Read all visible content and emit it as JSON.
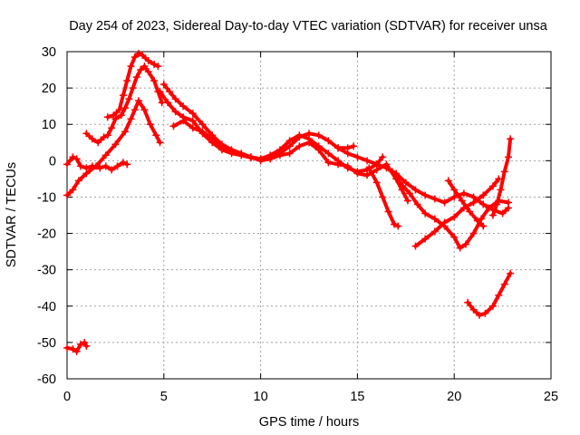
{
  "chart_data": {
    "type": "scatter",
    "title": "Day 254 of 2023, Sidereal Day-to-day VTEC variation (SDTVAR) for receiver unsa",
    "xlabel": "GPS time / hours",
    "ylabel": "SDTVAR / TECUs",
    "xlim": [
      0,
      25
    ],
    "ylim": [
      -60,
      30
    ],
    "xticks": [
      0,
      5,
      10,
      15,
      20,
      25
    ],
    "yticks": [
      -60,
      -50,
      -40,
      -30,
      -20,
      -10,
      0,
      10,
      20,
      30
    ],
    "grid": true,
    "marker": "+",
    "color": "#ff0000",
    "series": [
      {
        "name": "track-1",
        "points": [
          [
            0.0,
            -51.5
          ],
          [
            0.3,
            -51.8
          ],
          [
            0.5,
            -52.5
          ],
          [
            0.7,
            -50.5
          ],
          [
            0.9,
            -50.0
          ],
          [
            1.0,
            -51.0
          ]
        ]
      },
      {
        "name": "track-2",
        "points": [
          [
            0.0,
            -9.5
          ],
          [
            0.3,
            -8.0
          ],
          [
            0.6,
            -5.5
          ],
          [
            1.0,
            -3.5
          ],
          [
            1.5,
            -1.5
          ],
          [
            2.0,
            1.5
          ],
          [
            2.5,
            4.5
          ],
          [
            3.0,
            8.0
          ],
          [
            3.3,
            11.5
          ],
          [
            3.5,
            14.0
          ],
          [
            3.7,
            16.5
          ],
          [
            4.0,
            14.0
          ],
          [
            4.3,
            10.0
          ],
          [
            4.6,
            7.0
          ],
          [
            4.8,
            5.0
          ]
        ]
      },
      {
        "name": "track-3",
        "points": [
          [
            0.0,
            -1.0
          ],
          [
            0.3,
            1.0
          ],
          [
            0.5,
            0.5
          ],
          [
            0.7,
            -1.5
          ],
          [
            1.0,
            -2.0
          ],
          [
            1.3,
            -1.5
          ],
          [
            1.7,
            -2.0
          ],
          [
            2.0,
            -1.5
          ],
          [
            2.3,
            -2.5
          ],
          [
            2.6,
            -1.5
          ],
          [
            2.9,
            -0.5
          ],
          [
            3.1,
            -1.0
          ]
        ]
      },
      {
        "name": "track-4",
        "points": [
          [
            1.0,
            7.5
          ],
          [
            1.3,
            6.0
          ],
          [
            1.6,
            5.0
          ],
          [
            1.9,
            6.5
          ],
          [
            2.1,
            7.0
          ],
          [
            2.3,
            9.0
          ],
          [
            2.5,
            11.5
          ],
          [
            2.8,
            12.5
          ],
          [
            3.0,
            14.5
          ],
          [
            3.2,
            17.0
          ],
          [
            3.4,
            20.0
          ],
          [
            3.6,
            23.0
          ],
          [
            3.8,
            25.0
          ],
          [
            4.0,
            26.0
          ],
          [
            4.2,
            24.5
          ],
          [
            4.5,
            22.0
          ],
          [
            4.7,
            19.0
          ],
          [
            4.9,
            16.0
          ]
        ]
      },
      {
        "name": "track-5",
        "points": [
          [
            2.1,
            12.0
          ],
          [
            2.4,
            12.5
          ],
          [
            2.7,
            14.0
          ],
          [
            2.9,
            18.0
          ],
          [
            3.1,
            22.0
          ],
          [
            3.3,
            26.0
          ],
          [
            3.5,
            28.5
          ],
          [
            3.7,
            29.5
          ],
          [
            3.9,
            29.0
          ],
          [
            4.2,
            27.5
          ],
          [
            4.5,
            26.5
          ],
          [
            4.7,
            26.0
          ]
        ]
      },
      {
        "name": "track-6",
        "points": [
          [
            5.0,
            21.0
          ],
          [
            5.3,
            19.0
          ],
          [
            5.6,
            17.0
          ],
          [
            6.0,
            15.0
          ],
          [
            6.5,
            13.0
          ],
          [
            7.0,
            10.0
          ],
          [
            7.5,
            7.0
          ],
          [
            8.0,
            4.5
          ],
          [
            8.5,
            3.0
          ],
          [
            9.0,
            2.0
          ],
          [
            9.5,
            1.0
          ],
          [
            10.0,
            0.5
          ],
          [
            10.5,
            1.0
          ],
          [
            11.0,
            2.0
          ],
          [
            11.5,
            4.0
          ],
          [
            12.0,
            6.5
          ],
          [
            12.5,
            7.5
          ],
          [
            13.0,
            7.0
          ],
          [
            13.5,
            5.5
          ],
          [
            14.0,
            3.5
          ],
          [
            14.5,
            2.0
          ],
          [
            15.0,
            1.0
          ],
          [
            15.5,
            0.0
          ],
          [
            16.0,
            -1.0
          ],
          [
            16.5,
            -2.0
          ],
          [
            17.0,
            -3.5
          ],
          [
            17.5,
            -6.0
          ],
          [
            18.0,
            -8.0
          ],
          [
            18.5,
            -9.5
          ],
          [
            19.0,
            -10.5
          ],
          [
            19.5,
            -11.5
          ],
          [
            20.0,
            -10.0
          ],
          [
            20.5,
            -9.0
          ],
          [
            21.0,
            -10.0
          ],
          [
            21.5,
            -12.0
          ],
          [
            22.0,
            -13.5
          ],
          [
            22.5,
            -14.5
          ],
          [
            22.8,
            -13.0
          ]
        ]
      },
      {
        "name": "track-7",
        "points": [
          [
            4.8,
            19.0
          ],
          [
            5.2,
            16.0
          ],
          [
            5.6,
            13.5
          ],
          [
            6.0,
            12.0
          ],
          [
            6.5,
            11.0
          ],
          [
            7.0,
            7.5
          ],
          [
            7.5,
            5.0
          ],
          [
            8.0,
            3.0
          ],
          [
            8.5,
            2.0
          ],
          [
            9.0,
            1.5
          ],
          [
            9.5,
            0.8
          ],
          [
            10.0,
            0.5
          ],
          [
            10.5,
            1.5
          ],
          [
            11.0,
            3.0
          ],
          [
            11.5,
            5.5
          ],
          [
            12.0,
            7.0
          ],
          [
            12.5,
            6.0
          ],
          [
            13.0,
            4.0
          ],
          [
            13.5,
            2.0
          ],
          [
            14.0,
            0.0
          ],
          [
            14.5,
            -2.0
          ],
          [
            15.0,
            -3.0
          ],
          [
            15.5,
            -2.5
          ],
          [
            16.0,
            -1.0
          ],
          [
            16.3,
            1.0
          ]
        ]
      },
      {
        "name": "track-8",
        "points": [
          [
            5.5,
            9.5
          ],
          [
            6.0,
            11.0
          ],
          [
            6.5,
            9.0
          ],
          [
            7.0,
            8.0
          ],
          [
            7.5,
            6.0
          ],
          [
            8.0,
            3.5
          ],
          [
            8.5,
            2.5
          ],
          [
            9.0,
            1.5
          ],
          [
            9.5,
            1.0
          ],
          [
            10.0,
            0.0
          ],
          [
            10.5,
            0.5
          ],
          [
            11.0,
            1.5
          ],
          [
            11.5,
            2.0
          ],
          [
            12.0,
            4.0
          ],
          [
            12.5,
            5.0
          ],
          [
            13.0,
            3.0
          ],
          [
            13.5,
            -0.5
          ],
          [
            14.0,
            -1.0
          ],
          [
            14.5,
            -1.5
          ],
          [
            15.0,
            -3.5
          ],
          [
            15.5,
            -4.0
          ],
          [
            16.0,
            -2.5
          ],
          [
            16.5,
            -1.0
          ],
          [
            17.0,
            -5.0
          ],
          [
            17.3,
            -8.0
          ],
          [
            17.6,
            -11.0
          ]
        ]
      },
      {
        "name": "track-9",
        "points": [
          [
            14.0,
            3.5
          ],
          [
            14.5,
            3.5
          ],
          [
            14.8,
            4.0
          ]
        ]
      },
      {
        "name": "track-10",
        "points": [
          [
            15.6,
            -2.0
          ],
          [
            16.0,
            -6.0
          ],
          [
            16.3,
            -10.0
          ],
          [
            16.6,
            -14.0
          ],
          [
            16.9,
            -17.5
          ],
          [
            17.1,
            -18.0
          ]
        ]
      },
      {
        "name": "track-11",
        "points": [
          [
            16.8,
            -3.0
          ],
          [
            17.2,
            -6.0
          ],
          [
            17.7,
            -9.0
          ],
          [
            18.1,
            -12.0
          ],
          [
            18.5,
            -14.5
          ],
          [
            19.0,
            -16.0
          ],
          [
            19.5,
            -18.0
          ],
          [
            20.0,
            -21.0
          ],
          [
            20.3,
            -24.0
          ],
          [
            20.6,
            -23.0
          ],
          [
            21.0,
            -20.0
          ],
          [
            21.4,
            -16.0
          ],
          [
            21.8,
            -13.0
          ],
          [
            22.3,
            -11.0
          ],
          [
            22.8,
            -11.5
          ]
        ]
      },
      {
        "name": "track-12",
        "points": [
          [
            18.0,
            -23.5
          ],
          [
            18.5,
            -21.5
          ],
          [
            19.0,
            -19.5
          ],
          [
            19.5,
            -17.0
          ],
          [
            20.0,
            -15.5
          ],
          [
            20.5,
            -13.0
          ],
          [
            21.0,
            -11.5
          ],
          [
            21.5,
            -9.5
          ],
          [
            22.0,
            -7.0
          ],
          [
            22.3,
            -5.0
          ]
        ]
      },
      {
        "name": "track-13",
        "points": [
          [
            19.7,
            -5.5
          ],
          [
            20.0,
            -8.0
          ],
          [
            20.4,
            -11.0
          ],
          [
            20.8,
            -14.0
          ],
          [
            21.2,
            -16.5
          ],
          [
            21.5,
            -18.0
          ]
        ]
      },
      {
        "name": "track-14",
        "points": [
          [
            22.0,
            -15.0
          ],
          [
            22.2,
            -12.0
          ],
          [
            22.4,
            -8.0
          ],
          [
            22.6,
            -3.0
          ],
          [
            22.8,
            1.0
          ],
          [
            22.9,
            6.0
          ]
        ]
      },
      {
        "name": "track-15",
        "points": [
          [
            20.7,
            -39.0
          ],
          [
            21.0,
            -41.0
          ],
          [
            21.3,
            -42.5
          ],
          [
            21.6,
            -42.0
          ],
          [
            22.0,
            -40.0
          ],
          [
            22.3,
            -37.0
          ],
          [
            22.6,
            -34.0
          ],
          [
            22.9,
            -31.0
          ]
        ]
      }
    ]
  }
}
